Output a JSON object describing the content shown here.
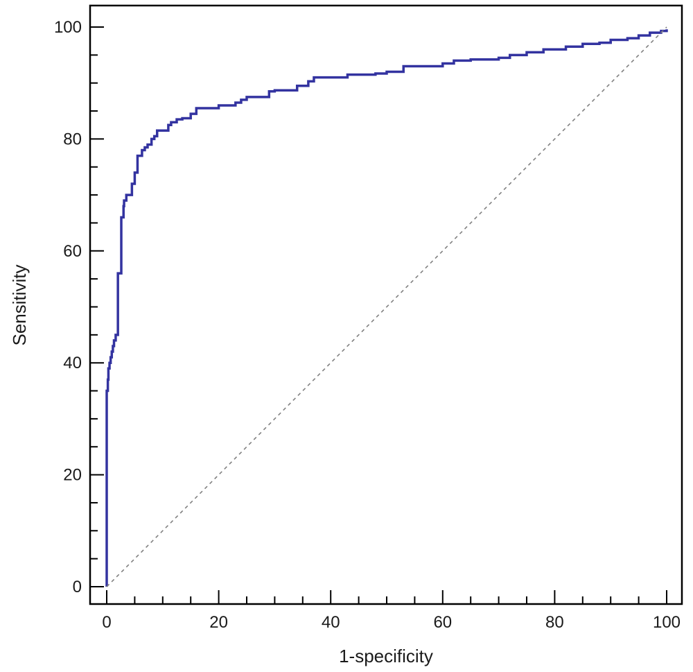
{
  "chart_data": {
    "type": "line",
    "xlabel": "1-specificity",
    "ylabel": "Sensitivity",
    "xlim": [
      0,
      100
    ],
    "ylim": [
      0,
      100
    ],
    "x_ticks": [
      0,
      20,
      40,
      60,
      80,
      100
    ],
    "y_ticks": [
      0,
      20,
      40,
      60,
      80,
      100
    ],
    "x_minor_step": 5,
    "y_minor_step": 5,
    "grid": false,
    "legend": "none",
    "series": [
      {
        "color": "#3333a0",
        "style": "stepped",
        "x": [
          0,
          0,
          0.2,
          0.3,
          0.5,
          0.7,
          0.9,
          1.1,
          1.3,
          1.6,
          2.0,
          2.0,
          2.6,
          2.6,
          3.0,
          3.1,
          3.5,
          4.0,
          4.5,
          5.0,
          5.5,
          5.8,
          6.3,
          6.8,
          7.3,
          8.0,
          8.5,
          9.0,
          9.5,
          11.0,
          11.5,
          12.5,
          13.5,
          15.0,
          16.0,
          18.0,
          20.0,
          23.0,
          24.0,
          25.0,
          29.0,
          30.0,
          34.0,
          36.0,
          37.0,
          39.0,
          43.0,
          45.0,
          48.0,
          50.0,
          53.0,
          58.0,
          60.0,
          62.0,
          65.0,
          70.0,
          72.0,
          75.0,
          78.0,
          82.0,
          85.0,
          88.0,
          90.0,
          93.0,
          95.0,
          97.0,
          99.0,
          100.0
        ],
        "y": [
          0,
          35,
          37,
          39,
          40,
          41,
          42,
          43,
          44,
          45,
          45,
          56,
          56,
          66,
          68,
          69,
          70,
          70,
          72,
          74,
          77,
          77,
          78,
          78.5,
          79,
          80,
          80.5,
          81.5,
          81.5,
          82.5,
          83,
          83.5,
          83.7,
          84.5,
          85.5,
          85.5,
          86,
          86.5,
          87,
          87.5,
          88.5,
          88.7,
          89.5,
          90.3,
          91,
          91,
          91.5,
          91.5,
          91.7,
          92,
          93,
          93,
          93.5,
          94,
          94.2,
          94.5,
          95,
          95.5,
          96,
          96.5,
          97,
          97.2,
          97.7,
          98,
          98.5,
          99,
          99.3,
          99.6
        ]
      },
      {
        "color": "#808080",
        "style": "dashed",
        "x": [
          0,
          100
        ],
        "y": [
          0,
          100
        ]
      }
    ]
  }
}
